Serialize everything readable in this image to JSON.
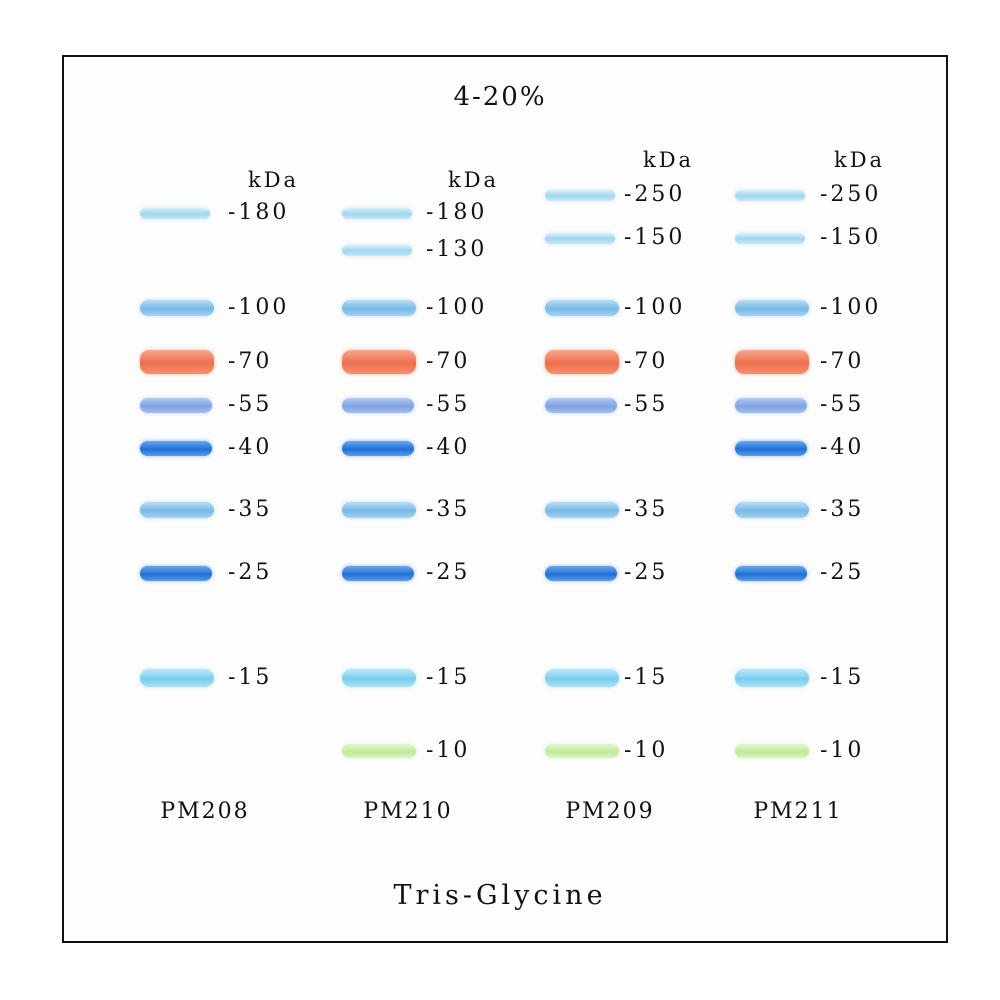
{
  "gel_title": "4-20%",
  "buffer": "Tris-Glycine",
  "unit": "kDa",
  "colors": {
    "light_blue": "#a9dcef",
    "mid_blue": "#85c2ea",
    "periwinkle": "#8aaee8",
    "dark_blue": "#2f7fdc",
    "cyan": "#86d2ee",
    "orange": "#f08060",
    "green": "#cdeeaa"
  },
  "lanes": [
    {
      "name": "PM208",
      "bands": [
        {
          "kda": "180",
          "label": "-180",
          "color": "light_blue"
        },
        {
          "kda": "100",
          "label": "-100",
          "color": "mid_blue"
        },
        {
          "kda": "70",
          "label": "-70",
          "color": "orange"
        },
        {
          "kda": "55",
          "label": "-55",
          "color": "periwinkle"
        },
        {
          "kda": "40",
          "label": "-40",
          "color": "dark_blue"
        },
        {
          "kda": "35",
          "label": "-35",
          "color": "mid_blue"
        },
        {
          "kda": "25",
          "label": "-25",
          "color": "dark_blue"
        },
        {
          "kda": "15",
          "label": "-15",
          "color": "cyan"
        }
      ]
    },
    {
      "name": "PM210",
      "bands": [
        {
          "kda": "180",
          "label": "-180",
          "color": "light_blue"
        },
        {
          "kda": "130",
          "label": "-130",
          "color": "light_blue"
        },
        {
          "kda": "100",
          "label": "-100",
          "color": "mid_blue"
        },
        {
          "kda": "70",
          "label": "-70",
          "color": "orange"
        },
        {
          "kda": "55",
          "label": "-55",
          "color": "periwinkle"
        },
        {
          "kda": "40",
          "label": "-40",
          "color": "dark_blue"
        },
        {
          "kda": "35",
          "label": "-35",
          "color": "mid_blue"
        },
        {
          "kda": "25",
          "label": "-25",
          "color": "dark_blue"
        },
        {
          "kda": "15",
          "label": "-15",
          "color": "cyan"
        },
        {
          "kda": "10",
          "label": "-10",
          "color": "green"
        }
      ]
    },
    {
      "name": "PM209",
      "bands": [
        {
          "kda": "250",
          "label": "-250",
          "color": "light_blue"
        },
        {
          "kda": "150",
          "label": "-150",
          "color": "light_blue"
        },
        {
          "kda": "100",
          "label": "-100",
          "color": "mid_blue"
        },
        {
          "kda": "70",
          "label": "-70",
          "color": "orange"
        },
        {
          "kda": "55",
          "label": "-55",
          "color": "periwinkle"
        },
        {
          "kda": "35",
          "label": "-35",
          "color": "mid_blue"
        },
        {
          "kda": "25",
          "label": "-25",
          "color": "dark_blue"
        },
        {
          "kda": "15",
          "label": "-15",
          "color": "cyan"
        },
        {
          "kda": "10",
          "label": "-10",
          "color": "green"
        }
      ]
    },
    {
      "name": "PM211",
      "bands": [
        {
          "kda": "250",
          "label": "-250",
          "color": "light_blue"
        },
        {
          "kda": "150",
          "label": "-150",
          "color": "light_blue"
        },
        {
          "kda": "100",
          "label": "-100",
          "color": "mid_blue"
        },
        {
          "kda": "70",
          "label": "-70",
          "color": "orange"
        },
        {
          "kda": "55",
          "label": "-55",
          "color": "periwinkle"
        },
        {
          "kda": "40",
          "label": "-40",
          "color": "dark_blue"
        },
        {
          "kda": "35",
          "label": "-35",
          "color": "mid_blue"
        },
        {
          "kda": "25",
          "label": "-25",
          "color": "dark_blue"
        },
        {
          "kda": "15",
          "label": "-15",
          "color": "cyan"
        },
        {
          "kda": "10",
          "label": "-10",
          "color": "green"
        }
      ]
    }
  ]
}
